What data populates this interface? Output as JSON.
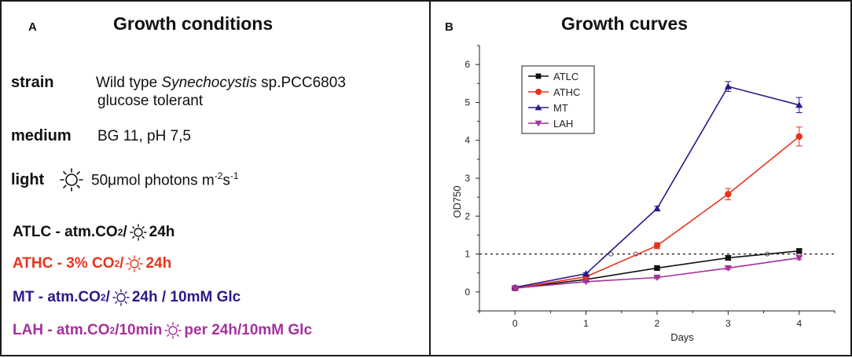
{
  "colors": {
    "atlc": "#111111",
    "athc": "#e8341c",
    "mt": "#2a1a8c",
    "lah": "#a4329c",
    "border": "#1a1a1a"
  },
  "panel_a": {
    "letter": "A",
    "title": "Growth conditions",
    "strain": {
      "label": "strain",
      "value_prefix": "Wild type ",
      "value_italic": "Synechocystis",
      "value_suffix": " sp.PCC6803",
      "value_line2": "glucose tolerant"
    },
    "medium": {
      "label": "medium",
      "value": "BG 11, pH 7,5"
    },
    "light": {
      "label": "light",
      "icon": "sun-icon",
      "value": "50μmol photons m",
      "sup1": "-2",
      "mid": "s",
      "sup2": "-1"
    },
    "conditions": [
      {
        "name": "ATLC",
        "pre": "ATLC - atm.CO",
        "sub": "2",
        "post": "/",
        "after": "24h"
      },
      {
        "name": "ATHC",
        "pre": "ATHC - 3% CO",
        "sub": "2",
        "post": "/",
        "after": "24h"
      },
      {
        "name": "MT",
        "pre": "MT - atm.CO",
        "sub": "2",
        "post": "/",
        "after": "24h / 10mM Glc"
      },
      {
        "name": "LAH",
        "pre": "LAH - atm.CO",
        "sub": "2",
        "post": "/10min",
        "after": "per 24h/10mM Glc"
      }
    ]
  },
  "panel_b": {
    "letter": "B",
    "title": "Growth curves"
  },
  "chart_data": {
    "type": "line",
    "title": "Growth curves",
    "xlabel": "Days",
    "ylabel": "OD750",
    "x": [
      0,
      1,
      2,
      3,
      4
    ],
    "xlim": [
      -0.5,
      4.5
    ],
    "ylim": [
      -0.5,
      6.5
    ],
    "xticks": [
      0,
      1,
      2,
      3,
      4
    ],
    "yticks": [
      0,
      1,
      2,
      3,
      4,
      5,
      6
    ],
    "legend_position": "top-left",
    "reference_line": {
      "y": 1,
      "style": "dotted"
    },
    "reference_markers_x": [
      1.35,
      1.7,
      3.55,
      4.0
    ],
    "series": [
      {
        "name": "ATLC",
        "color": "#111111",
        "marker": "square",
        "values": [
          0.1,
          0.33,
          0.63,
          0.9,
          1.08
        ],
        "errors": [
          0.03,
          0.03,
          0.05,
          0.06,
          0.06
        ]
      },
      {
        "name": "ATHC",
        "color": "#e8341c",
        "marker": "circle",
        "values": [
          0.1,
          0.4,
          1.22,
          2.58,
          4.1
        ],
        "errors": [
          0.03,
          0.03,
          0.08,
          0.15,
          0.25
        ]
      },
      {
        "name": "MT",
        "color": "#2a1a8c",
        "marker": "triangle-up",
        "values": [
          0.12,
          0.48,
          2.2,
          5.42,
          4.93
        ],
        "errors": [
          0.03,
          0.03,
          0.06,
          0.13,
          0.2
        ]
      },
      {
        "name": "LAH",
        "color": "#a4329c",
        "marker": "triangle-down",
        "values": [
          0.1,
          0.27,
          0.38,
          0.63,
          0.9
        ],
        "errors": [
          0.03,
          0.02,
          0.03,
          0.04,
          0.05
        ]
      }
    ]
  }
}
